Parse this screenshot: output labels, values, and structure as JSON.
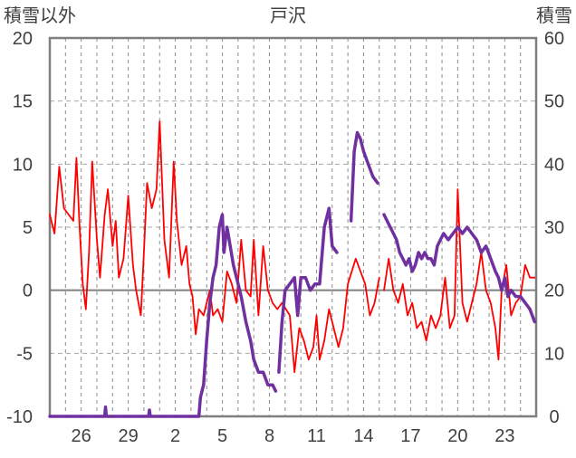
{
  "chart_data": {
    "type": "line",
    "title": "戸沢",
    "left_axis": {
      "label": "積雪以外",
      "ylim": [
        -10,
        20
      ],
      "ticks": [
        -10,
        -5,
        0,
        5,
        10,
        15,
        20
      ]
    },
    "right_axis": {
      "label": "積雪",
      "ylim": [
        0,
        60
      ],
      "ticks": [
        0,
        10,
        20,
        30,
        40,
        50,
        60
      ]
    },
    "x_axis": {
      "range": [
        0,
        31
      ],
      "tick_labels": [
        "26",
        "29",
        "2",
        "5",
        "8",
        "11",
        "14",
        "17",
        "20",
        "23"
      ],
      "tick_positions": [
        2,
        5,
        8,
        11,
        14,
        17,
        20,
        23,
        26,
        29
      ]
    },
    "grid": true,
    "series": [
      {
        "axis": "left",
        "color": "#ff0000",
        "points": [
          [
            0,
            6
          ],
          [
            0.3,
            4.5
          ],
          [
            0.6,
            9.8
          ],
          [
            0.9,
            6.5
          ],
          [
            1.2,
            6
          ],
          [
            1.5,
            5.5
          ],
          [
            1.7,
            10.5
          ],
          [
            1.9,
            5
          ],
          [
            2.1,
            0.5
          ],
          [
            2.3,
            -1.5
          ],
          [
            2.5,
            3
          ],
          [
            2.7,
            10.2
          ],
          [
            3,
            4
          ],
          [
            3.2,
            1
          ],
          [
            3.5,
            6
          ],
          [
            3.7,
            8
          ],
          [
            4,
            3.5
          ],
          [
            4.2,
            5.5
          ],
          [
            4.4,
            1
          ],
          [
            4.7,
            2.5
          ],
          [
            5,
            7.5
          ],
          [
            5.3,
            2
          ],
          [
            5.5,
            0
          ],
          [
            5.8,
            -2
          ],
          [
            6,
            3
          ],
          [
            6.2,
            8.5
          ],
          [
            6.5,
            6.5
          ],
          [
            6.8,
            8
          ],
          [
            7,
            13.4
          ],
          [
            7.3,
            4
          ],
          [
            7.6,
            1
          ],
          [
            7.9,
            10.2
          ],
          [
            8.1,
            5.5
          ],
          [
            8.4,
            2
          ],
          [
            8.7,
            3.5
          ],
          [
            8.9,
            0.5
          ],
          [
            9.1,
            -0.5
          ],
          [
            9.3,
            -3.5
          ],
          [
            9.5,
            -1.5
          ],
          [
            9.8,
            -2
          ],
          [
            10,
            -1
          ],
          [
            10.2,
            0
          ],
          [
            10.4,
            -2
          ],
          [
            10.7,
            -1.5
          ],
          [
            11,
            -2.5
          ],
          [
            11.3,
            1.5
          ],
          [
            11.6,
            0.5
          ],
          [
            11.9,
            -1
          ],
          [
            12.2,
            4
          ],
          [
            12.5,
            0
          ],
          [
            12.8,
            -0.5
          ],
          [
            13,
            4
          ],
          [
            13.3,
            -2
          ],
          [
            13.6,
            3.5
          ],
          [
            13.9,
            0
          ],
          [
            14.2,
            -1
          ],
          [
            14.5,
            -1.5
          ],
          [
            14.8,
            -1
          ],
          [
            15.3,
            -2
          ],
          [
            15.6,
            -6.5
          ],
          [
            15.9,
            -3
          ],
          [
            16.2,
            -4
          ],
          [
            16.5,
            -5.5
          ],
          [
            16.8,
            -4.5
          ],
          [
            17,
            -2
          ],
          [
            17.2,
            -5.5
          ],
          [
            17.5,
            -4
          ],
          [
            17.8,
            -1.5
          ],
          [
            18.1,
            -3
          ],
          [
            18.4,
            -4.5
          ],
          [
            18.7,
            -3
          ],
          [
            19,
            0.5
          ],
          [
            19.5,
            2.5
          ],
          [
            20.1,
            0.5
          ],
          [
            20.4,
            -2
          ],
          [
            20.7,
            -1
          ],
          [
            21,
            1
          ],
          [
            21.3,
            0
          ],
          [
            21.6,
            2.5
          ],
          [
            21.9,
            0
          ],
          [
            22.2,
            -1
          ],
          [
            22.5,
            0.5
          ],
          [
            22.8,
            -2
          ],
          [
            23.1,
            -1
          ],
          [
            23.4,
            -3
          ],
          [
            23.7,
            -2.5
          ],
          [
            24,
            -4
          ],
          [
            24.3,
            -2
          ],
          [
            24.6,
            -3
          ],
          [
            24.9,
            -2
          ],
          [
            25.2,
            1
          ],
          [
            25.5,
            -3
          ],
          [
            25.8,
            -2
          ],
          [
            26,
            8
          ],
          [
            26.3,
            -1
          ],
          [
            26.6,
            -2.5
          ],
          [
            26.9,
            -1
          ],
          [
            27.2,
            0.5
          ],
          [
            27.5,
            3
          ],
          [
            27.8,
            0
          ],
          [
            28.1,
            -1
          ],
          [
            28.4,
            -3
          ],
          [
            28.6,
            -5.5
          ],
          [
            28.8,
            0
          ],
          [
            29.1,
            2
          ],
          [
            29.4,
            -2
          ],
          [
            29.7,
            -1
          ],
          [
            30,
            -0.5
          ],
          [
            30.3,
            2
          ],
          [
            30.6,
            1
          ],
          [
            30.9,
            1
          ]
        ],
        "gap_ranges": [
          [
            14.8,
            15.2
          ],
          [
            18.9,
            19.2
          ],
          [
            19.3,
            19.6
          ],
          [
            20.9,
            21.3
          ]
        ]
      },
      {
        "axis": "right",
        "color": "#7030a0",
        "points": [
          [
            0,
            0
          ],
          [
            3,
            0
          ],
          [
            3.5,
            0
          ],
          [
            3.55,
            1.5
          ],
          [
            3.6,
            0
          ],
          [
            6,
            0
          ],
          [
            6.3,
            0
          ],
          [
            6.35,
            1
          ],
          [
            6.4,
            0
          ],
          [
            9,
            0
          ],
          [
            9.5,
            0
          ],
          [
            9.6,
            3
          ],
          [
            9.8,
            5
          ],
          [
            10,
            12
          ],
          [
            10.2,
            18
          ],
          [
            10.4,
            22
          ],
          [
            10.6,
            24
          ],
          [
            10.8,
            30
          ],
          [
            11,
            32
          ],
          [
            11.1,
            26
          ],
          [
            11.3,
            30
          ],
          [
            11.5,
            27
          ],
          [
            11.7,
            24
          ],
          [
            12,
            21
          ],
          [
            12.2,
            19
          ],
          [
            12.5,
            15
          ],
          [
            12.8,
            12
          ],
          [
            13,
            9
          ],
          [
            13.3,
            7
          ],
          [
            13.6,
            7
          ],
          [
            13.9,
            5
          ],
          [
            14.2,
            5
          ],
          [
            14.4,
            4
          ],
          [
            14.6,
            7
          ],
          [
            14.8,
            15
          ],
          [
            15,
            20
          ],
          [
            15.3,
            21
          ],
          [
            15.6,
            22
          ],
          [
            15.8,
            16
          ],
          [
            16,
            22
          ],
          [
            16.3,
            22
          ],
          [
            16.6,
            20
          ],
          [
            16.9,
            21
          ],
          [
            17.2,
            21
          ],
          [
            17.5,
            30
          ],
          [
            17.8,
            33
          ],
          [
            18,
            27
          ],
          [
            18.3,
            26
          ],
          [
            18.6,
            25
          ],
          [
            18.8,
            30
          ],
          [
            19.2,
            31
          ],
          [
            19.4,
            42
          ],
          [
            19.6,
            45
          ],
          [
            19.8,
            44
          ],
          [
            20,
            42
          ],
          [
            20.3,
            40
          ],
          [
            20.6,
            38
          ],
          [
            20.9,
            37
          ],
          [
            21.1,
            35
          ],
          [
            21.3,
            32
          ],
          [
            21.9,
            29
          ],
          [
            22.1,
            28
          ],
          [
            22.3,
            26
          ],
          [
            22.5,
            25
          ],
          [
            22.7,
            24
          ],
          [
            22.9,
            25
          ],
          [
            23.1,
            23
          ],
          [
            23.3,
            24
          ],
          [
            23.5,
            26
          ],
          [
            23.7,
            25
          ],
          [
            23.9,
            26
          ],
          [
            24.1,
            25
          ],
          [
            24.3,
            25
          ],
          [
            24.5,
            24
          ],
          [
            24.7,
            27
          ],
          [
            24.9,
            28
          ],
          [
            25.1,
            29
          ],
          [
            25.4,
            28
          ],
          [
            25.7,
            29
          ],
          [
            26,
            30
          ],
          [
            26.3,
            29
          ],
          [
            26.6,
            30
          ],
          [
            26.9,
            29
          ],
          [
            27.2,
            28
          ],
          [
            27.5,
            26
          ],
          [
            27.8,
            27
          ],
          [
            28.1,
            25
          ],
          [
            28.4,
            23
          ],
          [
            28.6,
            22
          ],
          [
            28.8,
            20
          ],
          [
            29,
            22
          ],
          [
            29.2,
            19
          ],
          [
            29.4,
            20
          ],
          [
            29.7,
            19
          ],
          [
            30,
            19
          ],
          [
            30.3,
            18
          ],
          [
            30.6,
            17
          ],
          [
            30.9,
            15
          ]
        ],
        "gap_ranges": [
          [
            14.4,
            14.6
          ],
          [
            18.3,
            19.2
          ],
          [
            20.9,
            21.7
          ]
        ]
      }
    ]
  }
}
